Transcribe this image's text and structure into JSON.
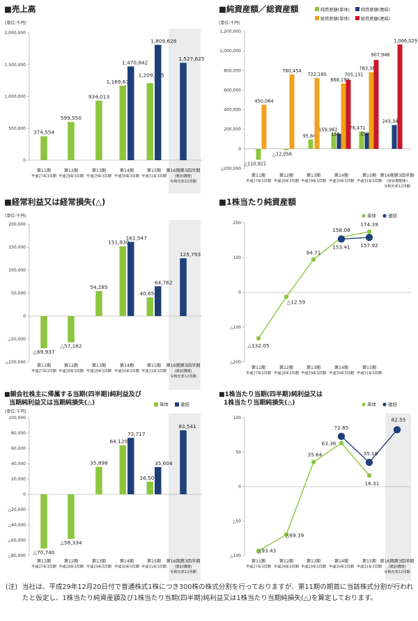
{
  "colors": {
    "single": "#8cc63e",
    "consolidated": "#1e3f7a",
    "total_single": "#f0a21b",
    "total_consolidated": "#c8192c",
    "band": "#ececec",
    "axis": "#999999",
    "text": "#333333"
  },
  "common": {
    "unit": "(単位:千円)",
    "legend_single": "単体",
    "legend_consolidated": "連結"
  },
  "charts": {
    "sales": {
      "title": "■売上高",
      "ylim": [
        0,
        2000000
      ],
      "yticks": [
        {
          "v": 0,
          "label": "0"
        },
        {
          "v": 500000,
          "label": "500,000"
        },
        {
          "v": 1000000,
          "label": "1,000,000"
        },
        {
          "v": 1500000,
          "label": "1,500,000"
        },
        {
          "v": 2000000,
          "label": "2,000,000"
        }
      ],
      "categories": [
        [
          "第11期",
          "平成27年3月期"
        ],
        [
          "第12期",
          "平成28年3月期"
        ],
        [
          "第13期",
          "平成29年3月期"
        ],
        [
          "第14期",
          "平成30年3月期"
        ],
        [
          "第15期",
          "平成31年3月期"
        ],
        [
          "第16期第3四半期",
          "(累計期間)",
          "令和元年12月期"
        ]
      ]
    },
    "netassets": {
      "title": "■純資産額／総資産額",
      "ylim": [
        -200000,
        1200000
      ],
      "yticks": [
        {
          "v": -200000,
          "label": "△200,000"
        },
        {
          "v": 0,
          "label": "0"
        },
        {
          "v": 200000,
          "label": "200,000"
        },
        {
          "v": 400000,
          "label": "400,000"
        },
        {
          "v": 600000,
          "label": "600,000"
        },
        {
          "v": 800000,
          "label": "800,000"
        },
        {
          "v": 1000000,
          "label": "1,000,000"
        },
        {
          "v": 1200000,
          "label": "1,200,000"
        }
      ],
      "legend": [
        "純資産額(単体)",
        "純資産額(連結)",
        "総資産額(単体)",
        "総資産額(連結)"
      ],
      "categories": [
        [
          "第11期",
          "平成27年3月期"
        ],
        [
          "第12期",
          "平成28年3月期"
        ],
        [
          "第13期",
          "平成29年3月期"
        ],
        [
          "第14期",
          "平成30年3月期"
        ],
        [
          "第15期",
          "平成31年3月期"
        ],
        [
          "第16期第3四半期",
          "(会計期間末)",
          "令和元年12月期"
        ]
      ]
    },
    "ordinary": {
      "title": "■経常利益又は経常損失(△)",
      "ylim": [
        -100000,
        200000
      ],
      "yticks": [
        {
          "v": -100000,
          "label": "△100,000"
        },
        {
          "v": -50000,
          "label": "△50,000"
        },
        {
          "v": 0,
          "label": "0"
        },
        {
          "v": 50000,
          "label": "50,000"
        },
        {
          "v": 100000,
          "label": "100,000"
        },
        {
          "v": 150000,
          "label": "150,000"
        },
        {
          "v": 200000,
          "label": "200,000"
        }
      ],
      "categories": [
        [
          "第11期",
          "平成27年3月期"
        ],
        [
          "第12期",
          "平成28年3月期"
        ],
        [
          "第13期",
          "平成29年3月期"
        ],
        [
          "第14期",
          "平成30年3月期"
        ],
        [
          "第15期",
          "平成31年3月期"
        ],
        [
          "第16期第3四半期",
          "(累計期間)",
          "令和元年12月期"
        ]
      ]
    },
    "bps": {
      "title": "■1株当たり純資産額",
      "ylim": [
        -200,
        200
      ],
      "yticks": [
        {
          "v": -200,
          "label": "△200"
        },
        {
          "v": -100,
          "label": "△100"
        },
        {
          "v": 0,
          "label": "0"
        },
        {
          "v": 100,
          "label": "100"
        },
        {
          "v": 200,
          "label": "200"
        }
      ],
      "categories": [
        [
          "第11期",
          "平成27年3月期"
        ],
        [
          "第12期",
          "平成28年3月期"
        ],
        [
          "第13期",
          "平成29年3月期"
        ],
        [
          "第14期",
          "平成30年3月期"
        ],
        [
          "第15期",
          "平成31年3月期"
        ]
      ]
    },
    "netincome": {
      "title_lines": [
        "■親会社株主に帰属する当期(四半期)純利益及び",
        "当期純利益又は当期純損失(△)"
      ],
      "ylim": [
        -80000,
        100000
      ],
      "yticks": [
        {
          "v": -80000,
          "label": "△80,000"
        },
        {
          "v": -60000,
          "label": "△60,000"
        },
        {
          "v": -40000,
          "label": "△40,000"
        },
        {
          "v": -20000,
          "label": "△20,000"
        },
        {
          "v": 0,
          "label": "0"
        },
        {
          "v": 20000,
          "label": "20,000"
        },
        {
          "v": 40000,
          "label": "40,000"
        },
        {
          "v": 60000,
          "label": "60,000"
        },
        {
          "v": 80000,
          "label": "80,000"
        },
        {
          "v": 100000,
          "label": "100,000"
        }
      ],
      "categories": [
        [
          "第11期",
          "平成27年3月期"
        ],
        [
          "第12期",
          "平成28年3月期"
        ],
        [
          "第13期",
          "平成29年3月期"
        ],
        [
          "第14期",
          "平成30年3月期"
        ],
        [
          "第15期",
          "平成31年3月期"
        ],
        [
          "第16期第3四半期",
          "(累計期間)",
          "令和元年12月期"
        ]
      ]
    },
    "eps": {
      "title_lines": [
        "■1株当たり当期(四半期)純利益又は",
        "1株当たり当期純損失(△)"
      ],
      "ylim": [
        -100,
        100
      ],
      "yticks": [
        {
          "v": -100,
          "label": "△100"
        },
        {
          "v": -50,
          "label": "△50"
        },
        {
          "v": 0,
          "label": "0"
        },
        {
          "v": 50,
          "label": "50"
        },
        {
          "v": 100,
          "label": "100"
        }
      ],
      "categories": [
        [
          "第11期",
          "平成27年3月期"
        ],
        [
          "第12期",
          "平成28年3月期"
        ],
        [
          "第13期",
          "平成29年3月期"
        ],
        [
          "第14期",
          "平成30年3月期"
        ],
        [
          "第15期",
          "平成31年3月期"
        ],
        [
          "第16期第3四半期",
          "(累計期間)",
          "令和元年12月期"
        ]
      ]
    }
  },
  "chart_data": [
    {
      "type": "bar",
      "title": "売上高",
      "categories": [
        "第11期",
        "第12期",
        "第13期",
        "第14期",
        "第15期",
        "第16期第3四半期"
      ],
      "series": [
        {
          "name": "単体",
          "values": [
            374554,
            599550,
            934013,
            1169671,
            1209065,
            null
          ],
          "labels": [
            "374,554",
            "599,550",
            "934,013",
            "1,169,671",
            "1,209,065",
            null
          ]
        },
        {
          "name": "連結",
          "values": [
            null,
            null,
            null,
            1470842,
            1809628,
            1527625
          ],
          "labels": [
            null,
            null,
            null,
            "1,470,842",
            "1,809,628",
            "1,527,625"
          ]
        }
      ],
      "ylim": [
        0,
        2000000
      ],
      "ylabel": "(単位:千円)"
    },
    {
      "type": "bar",
      "title": "純資産額／総資産額",
      "categories": [
        "第11期",
        "第12期",
        "第13期",
        "第14期",
        "第15期",
        "第16期第3四半期"
      ],
      "series": [
        {
          "name": "純資産額(単体)",
          "values": [
            -110921,
            -12056,
            95842,
            159962,
            176471,
            null
          ],
          "labels": [
            "△110,921",
            "△12,056",
            "95,842",
            "159,962",
            "176,471",
            null
          ]
        },
        {
          "name": "純資産額(連結)",
          "values": [
            null,
            null,
            null,
            155235,
            159807,
            243349
          ],
          "labels": [
            null,
            null,
            null,
            "155,235",
            "159,807",
            "243,349"
          ]
        },
        {
          "name": "総資産額(単体)",
          "values": [
            450064,
            760454,
            722160,
            668193,
            783366,
            null
          ],
          "labels": [
            "450,064",
            "760,454",
            "722,160",
            "668,193",
            "783,366",
            null
          ]
        },
        {
          "name": "総資産額(連結)",
          "values": [
            null,
            null,
            null,
            705131,
            907946,
            1066029
          ],
          "labels": [
            null,
            null,
            null,
            "705,131",
            "907,946",
            "1,066,029"
          ]
        }
      ],
      "ylim": [
        -200000,
        1200000
      ],
      "ylabel": "(単位:千円)"
    },
    {
      "type": "bar",
      "title": "経常利益又は経常損失(△)",
      "categories": [
        "第11期",
        "第12期",
        "第13期",
        "第14期",
        "第15期",
        "第16期第3四半期"
      ],
      "series": [
        {
          "name": "単体",
          "values": [
            -69937,
            -57162,
            54285,
            151930,
            40654,
            null
          ],
          "labels": [
            "△69,937",
            "△57,162",
            "54,285",
            "151,930",
            "40,654",
            null
          ]
        },
        {
          "name": "連結",
          "values": [
            null,
            null,
            null,
            161547,
            64762,
            125793
          ],
          "labels": [
            null,
            null,
            null,
            "161,547",
            "64,762",
            "125,793"
          ]
        }
      ],
      "ylim": [
        -100000,
        200000
      ],
      "ylabel": "(単位:千円)"
    },
    {
      "type": "line",
      "title": "1株当たり純資産額",
      "categories": [
        "第11期",
        "第12期",
        "第13期",
        "第14期",
        "第15期"
      ],
      "series": [
        {
          "name": "単体",
          "values": [
            -132.05,
            -12.59,
            94.71,
            158.08,
            174.39
          ],
          "labels": [
            "△132.05",
            "△12.59",
            "94.71",
            "158.08",
            "174.39"
          ]
        },
        {
          "name": "連結",
          "values": [
            null,
            null,
            null,
            153.41,
            157.92
          ],
          "labels": [
            null,
            null,
            null,
            "153.41",
            "157.92"
          ]
        }
      ],
      "ylim": [
        -200,
        200
      ]
    },
    {
      "type": "bar",
      "title": "親会社株主に帰属する当期(四半期)純利益及び当期純利益又は当期純損失(△)",
      "categories": [
        "第11期",
        "第12期",
        "第13期",
        "第14期",
        "第15期",
        "第16期第3四半期"
      ],
      "series": [
        {
          "name": "単体",
          "values": [
            -70740,
            -58334,
            35898,
            64120,
            16509,
            null
          ],
          "labels": [
            "△70,740",
            "△58,334",
            "35,898",
            "64,120",
            "16,509",
            null
          ]
        },
        {
          "name": "連結",
          "values": [
            null,
            null,
            null,
            73717,
            35604,
            83541
          ],
          "labels": [
            null,
            null,
            null,
            "73,717",
            "35,604",
            "83,541"
          ]
        }
      ],
      "ylim": [
        -80000,
        100000
      ],
      "ylabel": "(単位:千円)"
    },
    {
      "type": "line",
      "title": "1株当たり当期(四半期)純利益又は1株当たり当期純損失(△)",
      "categories": [
        "第11期",
        "第12期",
        "第13期",
        "第14期",
        "第15期",
        "第16期第3四半期"
      ],
      "series": [
        {
          "name": "単体",
          "values": [
            -93.43,
            -69.39,
            35.64,
            63.36,
            16.31,
            null
          ],
          "labels": [
            "△93.43",
            "△69.39",
            "35.64",
            "63.36",
            "16.31",
            null
          ]
        },
        {
          "name": "連結",
          "values": [
            null,
            null,
            null,
            72.85,
            35.18,
            82.55
          ],
          "labels": [
            null,
            null,
            null,
            "72.85",
            "35.18",
            "82.55"
          ]
        }
      ],
      "ylim": [
        -100,
        100
      ]
    }
  ],
  "footnote": {
    "mark": "(注)",
    "text": "当社は、平成29年12月20日付で普通株式1株につき300株の株式分割を行っておりますが、第11期の期首に当該株式分割が行われたと仮定し、1株当たり純資産額及び1株当たり当期(四半期)純利益又は1株当たり当期純損失(△)を算定しております。"
  }
}
